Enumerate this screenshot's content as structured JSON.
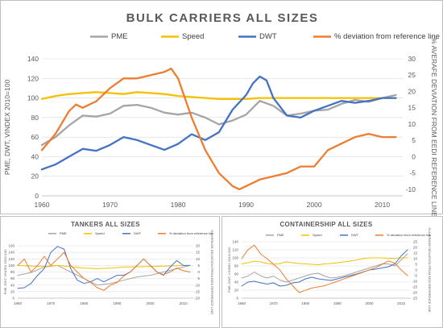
{
  "colors": {
    "PME": "#a5a5a5",
    "Speed": "#f5c000",
    "DWT": "#4472c4",
    "Deviation": "#ed7d31",
    "grid": "#d9d9d9",
    "border": "#bfbfbf",
    "axis_text": "#595959",
    "title": "#595959"
  },
  "chart_data": [
    {
      "type": "line",
      "title": "BULK CARRIERS ALL SIZES",
      "ylabel": "PME, DWT, VINDEX 2010=100",
      "y2label": "% AVERAFE DEVIATION FROM EEDI REFERENCE LINE",
      "xlim": [
        1960,
        2013
      ],
      "ylim": [
        0,
        140
      ],
      "y2lim": [
        -12,
        30
      ],
      "x_ticks": [
        1960,
        1970,
        1980,
        1990,
        2000,
        2010
      ],
      "y_ticks": [
        0,
        20,
        40,
        60,
        80,
        100,
        120,
        140
      ],
      "y2_ticks": [
        -10,
        -5,
        0,
        5,
        10,
        15,
        20,
        25,
        30
      ],
      "grid": true,
      "legend": "top",
      "series": [
        {
          "name": "PME",
          "color": "PME",
          "axis": "left",
          "x": [
            1960,
            1962,
            1964,
            1966,
            1968,
            1970,
            1972,
            1974,
            1976,
            1978,
            1980,
            1982,
            1984,
            1986,
            1988,
            1990,
            1992,
            1994,
            1996,
            1998,
            2000,
            2002,
            2004,
            2006,
            2008,
            2010,
            2012
          ],
          "y": [
            52,
            60,
            72,
            82,
            81,
            84,
            92,
            93,
            90,
            85,
            83,
            85,
            80,
            73,
            77,
            83,
            97,
            92,
            82,
            84,
            87,
            88,
            94,
            98,
            96,
            100,
            103
          ]
        },
        {
          "name": "Speed",
          "color": "Speed",
          "axis": "left",
          "x": [
            1960,
            1962,
            1964,
            1966,
            1968,
            1970,
            1972,
            1974,
            1976,
            1978,
            1980,
            1982,
            1984,
            1986,
            1988,
            1990,
            1992,
            1994,
            1996,
            1998,
            2000,
            2002,
            2004,
            2006,
            2008,
            2010,
            2012
          ],
          "y": [
            99,
            102,
            104,
            105,
            106,
            105,
            104,
            106,
            105,
            104,
            102,
            101,
            100,
            99,
            99,
            99,
            100,
            100,
            100,
            100,
            100,
            100,
            100,
            100,
            100,
            100,
            100
          ]
        },
        {
          "name": "DWT",
          "color": "DWT",
          "axis": "left",
          "x": [
            1960,
            1962,
            1964,
            1966,
            1968,
            1970,
            1972,
            1974,
            1976,
            1978,
            1980,
            1982,
            1984,
            1986,
            1988,
            1990,
            1991,
            1992,
            1993,
            1994,
            1996,
            1998,
            2000,
            2002,
            2004,
            2006,
            2008,
            2010,
            2012
          ],
          "y": [
            27,
            32,
            40,
            48,
            46,
            52,
            60,
            57,
            52,
            47,
            53,
            63,
            57,
            65,
            88,
            103,
            115,
            122,
            118,
            100,
            82,
            80,
            87,
            92,
            97,
            95,
            97,
            100,
            100
          ]
        },
        {
          "name": "% deviation from reference line",
          "color": "Deviation",
          "axis": "right",
          "x": [
            1960,
            1962,
            1964,
            1965,
            1966,
            1968,
            1970,
            1972,
            1974,
            1976,
            1978,
            1979,
            1980,
            1982,
            1984,
            1986,
            1988,
            1989,
            1990,
            1992,
            1994,
            1996,
            1998,
            2000,
            2002,
            2004,
            2006,
            2008,
            2010,
            2012
          ],
          "y": [
            2,
            7,
            14,
            16,
            15,
            17,
            21,
            24,
            24,
            25,
            26,
            27,
            24,
            12,
            2,
            -5,
            -9,
            -10,
            -9,
            -7,
            -6,
            -5,
            -3,
            -3,
            2,
            4,
            6,
            7,
            6,
            6
          ]
        }
      ]
    },
    {
      "type": "line",
      "title": "TANKERS ALL SIZES",
      "ylabel": "PME, DWT, VINDEX 2010=100",
      "y2label": "% AVERAGE DEVIATION FROM EEDI REFERENCE LINE",
      "xlim": [
        1960,
        2013
      ],
      "ylim": [
        0,
        160
      ],
      "y2lim": [
        -20,
        20
      ],
      "x_ticks": [
        1960,
        1970,
        1980,
        1990,
        2000,
        2010
      ],
      "y_ticks": [
        0,
        20,
        40,
        60,
        80,
        100,
        120,
        140,
        160
      ],
      "y2_ticks": [
        -20,
        -15,
        -10,
        -5,
        0,
        5,
        10,
        15,
        20
      ],
      "grid": true,
      "legend": "top",
      "series": [
        {
          "name": "PME",
          "color": "PME",
          "axis": "left",
          "x": [
            1960,
            1964,
            1968,
            1972,
            1976,
            1980,
            1984,
            1988,
            1992,
            1996,
            2000,
            2004,
            2008,
            2012
          ],
          "y": [
            70,
            78,
            95,
            100,
            80,
            60,
            40,
            45,
            55,
            65,
            70,
            80,
            90,
            100
          ]
        },
        {
          "name": "Speed",
          "color": "Speed",
          "axis": "left",
          "x": [
            1960,
            1964,
            1968,
            1972,
            1976,
            1980,
            1984,
            1988,
            1992,
            1996,
            2000,
            2004,
            2008,
            2012
          ],
          "y": [
            100,
            98,
            97,
            100,
            96,
            92,
            90,
            92,
            95,
            96,
            97,
            98,
            99,
            100
          ]
        },
        {
          "name": "DWT",
          "color": "DWT",
          "axis": "left",
          "x": [
            1960,
            1962,
            1964,
            1966,
            1968,
            1970,
            1972,
            1974,
            1976,
            1978,
            1980,
            1982,
            1984,
            1986,
            1988,
            1990,
            1992,
            1994,
            1996,
            1998,
            2000,
            2002,
            2004,
            2006,
            2008,
            2010,
            2012
          ],
          "y": [
            30,
            32,
            45,
            70,
            90,
            140,
            158,
            150,
            90,
            55,
            45,
            50,
            60,
            50,
            60,
            70,
            70,
            80,
            100,
            120,
            100,
            80,
            70,
            95,
            115,
            100,
            100
          ]
        },
        {
          "name": "% deviation from reference line",
          "color": "Deviation",
          "axis": "right",
          "x": [
            1960,
            1962,
            1964,
            1966,
            1968,
            1970,
            1972,
            1974,
            1976,
            1978,
            1980,
            1982,
            1984,
            1986,
            1988,
            1990,
            1992,
            1994,
            1996,
            1998,
            2000,
            2002,
            2004,
            2006,
            2008,
            2010,
            2012
          ],
          "y": [
            5,
            10,
            0,
            5,
            12,
            5,
            10,
            15,
            5,
            0,
            -5,
            -8,
            -12,
            -14,
            -10,
            -8,
            -3,
            0,
            5,
            10,
            5,
            0,
            -2,
            0,
            3,
            1,
            0
          ]
        }
      ]
    },
    {
      "type": "line",
      "title": "CONTAINERSHIP ALL SIZES",
      "ylabel": "PME, DWT, VINDEX 2010=100",
      "y2label": "% AVERAGE DEVIATION FROM EEDI REFERENCE LINE",
      "xlim": [
        1960,
        2013
      ],
      "ylim": [
        0,
        140
      ],
      "y2lim": [
        -25,
        25
      ],
      "x_ticks": [
        1960,
        1970,
        1980,
        1990,
        2000,
        2010
      ],
      "y_ticks": [
        0,
        20,
        40,
        60,
        80,
        100,
        120,
        140
      ],
      "y2_ticks": [
        -25,
        -20,
        -15,
        -10,
        -5,
        0,
        5,
        10,
        15,
        20,
        25
      ],
      "grid": true,
      "legend": "top",
      "series": [
        {
          "name": "PME",
          "color": "PME",
          "axis": "left",
          "x": [
            1960,
            1962,
            1964,
            1966,
            1968,
            1970,
            1972,
            1974,
            1976,
            1978,
            1980,
            1982,
            1984,
            1986,
            1988,
            1990,
            1992,
            1994,
            1996,
            1998,
            2000,
            2002,
            2004,
            2006,
            2008,
            2010,
            2012
          ],
          "y": [
            50,
            55,
            65,
            55,
            50,
            55,
            45,
            40,
            45,
            50,
            55,
            60,
            62,
            55,
            50,
            52,
            55,
            60,
            65,
            70,
            75,
            80,
            85,
            85,
            80,
            95,
            110
          ]
        },
        {
          "name": "Speed",
          "color": "Speed",
          "axis": "left",
          "x": [
            1960,
            1962,
            1964,
            1966,
            1968,
            1970,
            1972,
            1974,
            1976,
            1978,
            1980,
            1982,
            1984,
            1986,
            1988,
            1990,
            1992,
            1994,
            1996,
            1998,
            2000,
            2002,
            2004,
            2006,
            2008,
            2010,
            2012
          ],
          "y": [
            85,
            88,
            92,
            90,
            86,
            84,
            86,
            90,
            88,
            86,
            85,
            84,
            83,
            85,
            86,
            88,
            90,
            92,
            95,
            98,
            100,
            100,
            100,
            99,
            99,
            100,
            100
          ]
        },
        {
          "name": "DWT",
          "color": "DWT",
          "axis": "left",
          "x": [
            1960,
            1962,
            1964,
            1966,
            1968,
            1970,
            1972,
            1974,
            1976,
            1978,
            1980,
            1982,
            1984,
            1986,
            1988,
            1990,
            1992,
            1994,
            1996,
            1998,
            2000,
            2002,
            2004,
            2006,
            2008,
            2010,
            2012
          ],
          "y": [
            30,
            40,
            42,
            38,
            35,
            38,
            30,
            32,
            38,
            40,
            48,
            52,
            48,
            46,
            44,
            48,
            52,
            56,
            60,
            65,
            70,
            72,
            75,
            78,
            85,
            105,
            120
          ]
        },
        {
          "name": "% deviation from reference line",
          "color": "Deviation",
          "axis": "right",
          "x": [
            1960,
            1962,
            1964,
            1966,
            1968,
            1970,
            1972,
            1974,
            1976,
            1978,
            1980,
            1982,
            1984,
            1986,
            1988,
            1990,
            1992,
            1994,
            1996,
            1998,
            2000,
            2002,
            2004,
            2006,
            2008,
            2010,
            2012
          ],
          "y": [
            10,
            18,
            22,
            14,
            10,
            5,
            0,
            -8,
            -14,
            -20,
            -18,
            -16,
            -15,
            -14,
            -12,
            -10,
            -8,
            -6,
            -4,
            -2,
            0,
            2,
            5,
            8,
            6,
            0,
            -5
          ]
        }
      ]
    }
  ]
}
